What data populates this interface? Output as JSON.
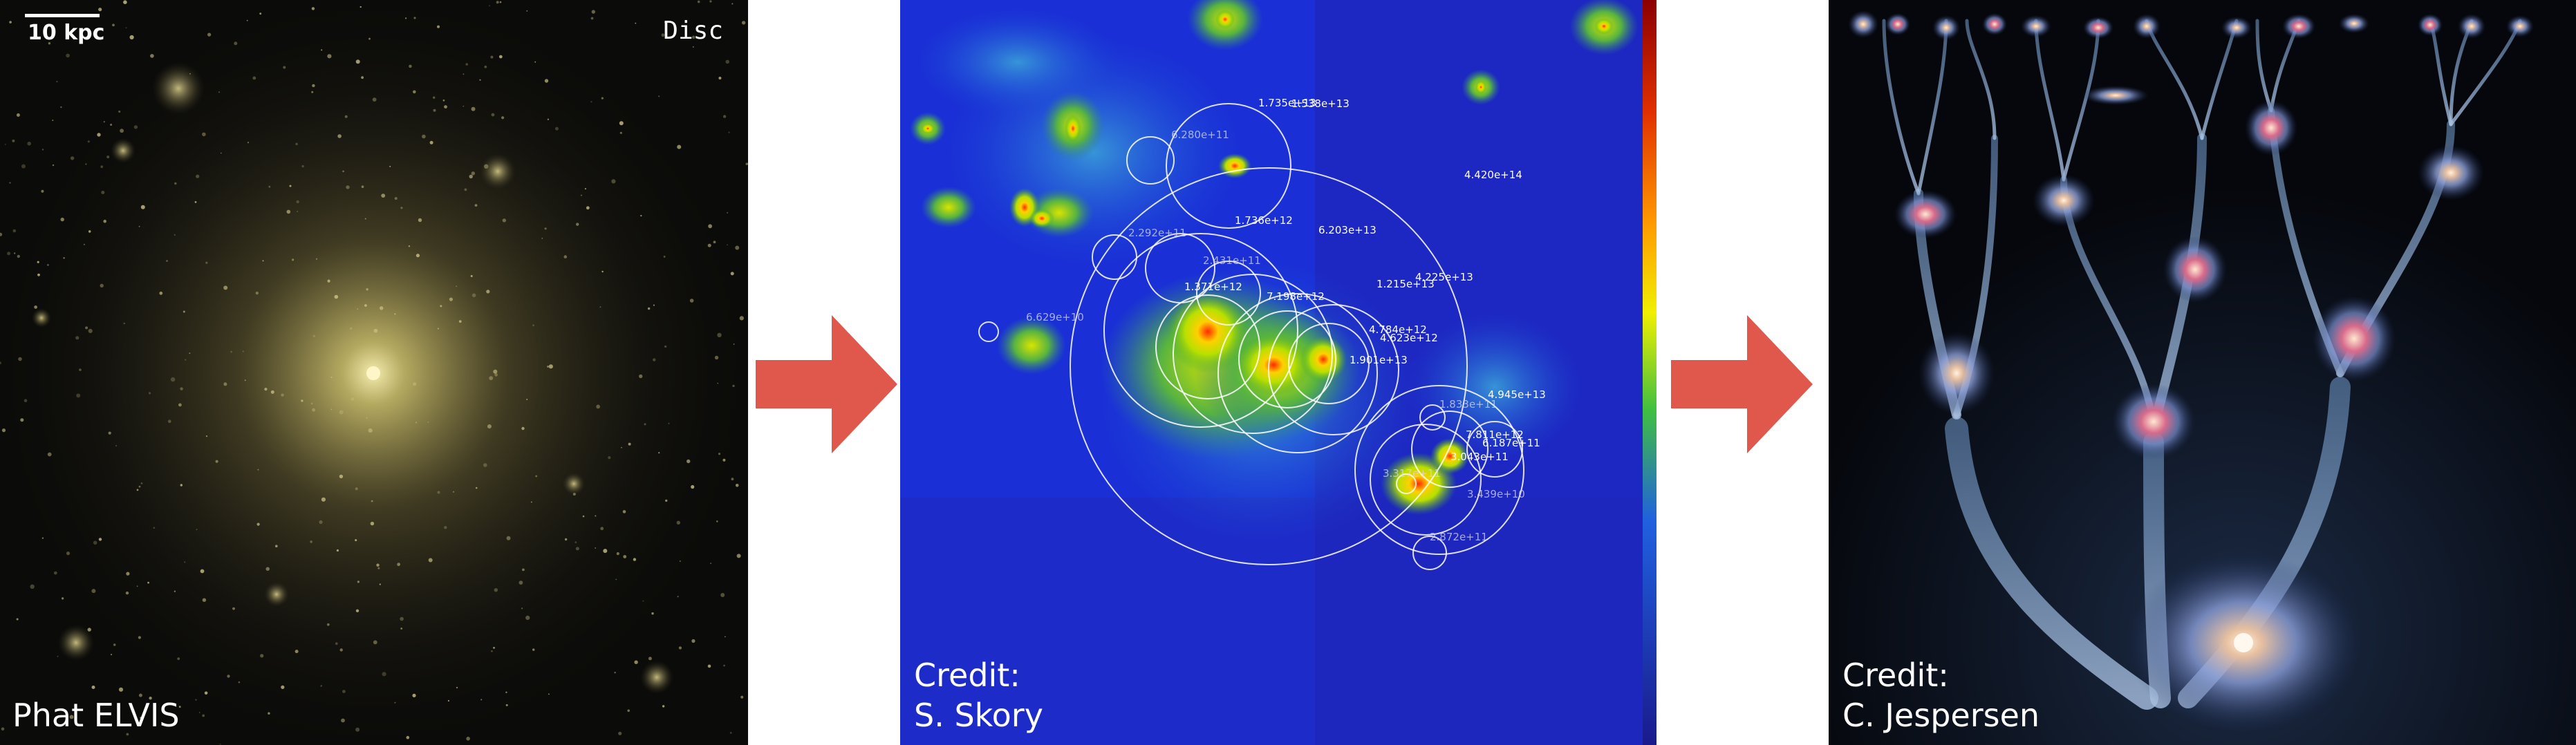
{
  "panels": {
    "simulation": {
      "scale_bar_label": "10 kpc",
      "corner_label": "Disc",
      "caption": "Phat ELVIS"
    },
    "halo_finder": {
      "caption_line1": "Credit:",
      "caption_line2": "S. Skory",
      "halo_labels": [
        "1.735e+13",
        "1.538e+13",
        "6.280e+11",
        "4.420e+14",
        "1.736e+12",
        "6.203e+13",
        "2.292e+11",
        "2.431e+11",
        "4.225e+13",
        "1.215e+13",
        "1.371e+12",
        "7.198e+12",
        "6.629e+10",
        "4.784e+12",
        "4.623e+12",
        "1.901e+13",
        "4.945e+13",
        "1.833e+11",
        "7.811e+12",
        "6.187e+11",
        "3.043e+11",
        "3.317e+11",
        "3.439e+10",
        "2.872e+11"
      ]
    },
    "merger_tree": {
      "caption_line1": "Credit:",
      "caption_line2": "C. Jespersen"
    }
  },
  "colors": {
    "arrow": "#e0584b",
    "halo_background": "#1a2fd6",
    "colorbar_top": "#8b0000",
    "colorbar_bottom": "#1a1a8c"
  }
}
